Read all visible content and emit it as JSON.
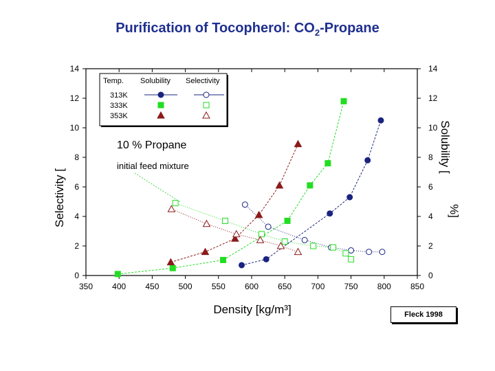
{
  "slide": {
    "title": "Purification of Tocopherol: CO",
    "title_sub": "2",
    "title_suffix": "-Propane",
    "credit": "Fleck 1998"
  },
  "chart_data": {
    "type": "scatter",
    "xlabel": "Density [kg/m³]",
    "ylabel_left": "Selectivity [",
    "ylabel_right": "Solubility [",
    "ylabel_right_unit": "%]",
    "xlim": [
      350,
      850
    ],
    "ylim": [
      0,
      14
    ],
    "x_ticks": [
      350,
      400,
      450,
      500,
      550,
      600,
      650,
      700,
      750,
      800,
      850
    ],
    "y_ticks": [
      0,
      2,
      4,
      6,
      8,
      10,
      12,
      14
    ],
    "grid": false,
    "legend_position": "top-left",
    "legend_headers": [
      "Temp.",
      "Solubility",
      "Selectivity"
    ],
    "annotations": [
      "10 % Propane",
      "initial feed mixture"
    ],
    "series": [
      {
        "name": "313K",
        "metric": "solubility",
        "color": "#1a237e",
        "marker": "circle-filled",
        "x": [
          585,
          622,
          718,
          748,
          775,
          795
        ],
        "y": [
          0.7,
          1.1,
          4.2,
          5.3,
          7.8,
          10.5
        ]
      },
      {
        "name": "333K",
        "metric": "solubility",
        "color": "#22dd22",
        "marker": "square-filled",
        "x": [
          398,
          481,
          557,
          654,
          688,
          715,
          739
        ],
        "y": [
          0.1,
          0.5,
          1.05,
          3.7,
          6.1,
          7.6,
          11.8
        ]
      },
      {
        "name": "353K",
        "metric": "solubility",
        "color": "#8b1a1a",
        "marker": "triangle-filled",
        "x": [
          478,
          530,
          575,
          611,
          642,
          670
        ],
        "y": [
          0.9,
          1.6,
          2.5,
          4.1,
          6.1,
          8.9
        ]
      },
      {
        "name": "313K",
        "metric": "selectivity",
        "color": "#1a237e",
        "marker": "circle-open",
        "x": [
          590,
          625,
          680,
          720,
          750,
          777,
          797
        ],
        "y": [
          4.8,
          3.3,
          2.4,
          1.9,
          1.7,
          1.6,
          1.6
        ]
      },
      {
        "name": "333K",
        "metric": "selectivity",
        "color": "#22dd22",
        "marker": "square-open",
        "x": [
          485,
          560,
          615,
          650,
          693,
          723,
          742,
          750
        ],
        "y": [
          4.9,
          3.7,
          2.8,
          2.3,
          2.0,
          1.9,
          1.5,
          1.1
        ]
      },
      {
        "name": "353K",
        "metric": "selectivity",
        "color": "#8b1a1a",
        "marker": "triangle-open",
        "x": [
          479,
          532,
          577,
          613,
          644,
          670
        ],
        "y": [
          4.5,
          3.5,
          2.8,
          2.4,
          2.0,
          1.6
        ]
      }
    ]
  }
}
